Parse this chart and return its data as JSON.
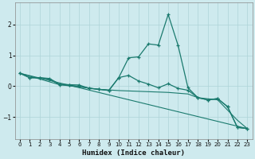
{
  "xlabel": "Humidex (Indice chaleur)",
  "bg_color": "#ceeaee",
  "grid_color": "#aed4d8",
  "line_color": "#1a7a6e",
  "xlim": [
    -0.5,
    23.5
  ],
  "ylim": [
    -1.7,
    2.7
  ],
  "yticks": [
    -1,
    0,
    1,
    2
  ],
  "xticks": [
    0,
    1,
    2,
    3,
    4,
    5,
    6,
    7,
    8,
    9,
    10,
    11,
    12,
    13,
    14,
    15,
    16,
    17,
    18,
    19,
    20,
    21,
    22,
    23
  ],
  "series": [
    {
      "x": [
        0,
        1,
        2,
        3,
        4,
        5,
        6,
        7,
        8,
        9,
        10,
        11,
        12,
        13,
        14,
        15,
        16,
        17,
        18,
        19,
        20,
        21,
        22,
        23
      ],
      "y": [
        0.42,
        0.28,
        0.28,
        0.25,
        0.07,
        0.05,
        0.04,
        -0.07,
        -0.1,
        -0.13,
        0.28,
        0.92,
        0.95,
        1.37,
        1.33,
        2.32,
        1.32,
        -0.05,
        -0.37,
        -0.44,
        -0.4,
        -0.66,
        -1.33,
        -1.37
      ],
      "marker": true
    },
    {
      "x": [
        0,
        1,
        2,
        3,
        4,
        5,
        6,
        7,
        8,
        9,
        10,
        11,
        12,
        13,
        14,
        15,
        16,
        17,
        18,
        19,
        20,
        21,
        22,
        23
      ],
      "y": [
        0.42,
        0.27,
        0.27,
        0.23,
        0.05,
        0.03,
        0.0,
        -0.06,
        -0.1,
        -0.14,
        0.28,
        0.35,
        0.17,
        0.07,
        -0.05,
        0.08,
        -0.07,
        -0.13,
        -0.37,
        -0.44,
        -0.4,
        -0.66,
        -1.33,
        -1.37
      ],
      "marker": true
    },
    {
      "x": [
        0,
        4,
        8,
        10,
        15,
        17,
        18,
        20,
        22,
        23
      ],
      "y": [
        0.42,
        0.05,
        -0.1,
        -0.14,
        -0.2,
        -0.25,
        -0.37,
        -0.44,
        -1.1,
        -1.37
      ],
      "marker": false
    },
    {
      "x": [
        0,
        23
      ],
      "y": [
        0.42,
        -1.37
      ],
      "marker": false
    }
  ]
}
